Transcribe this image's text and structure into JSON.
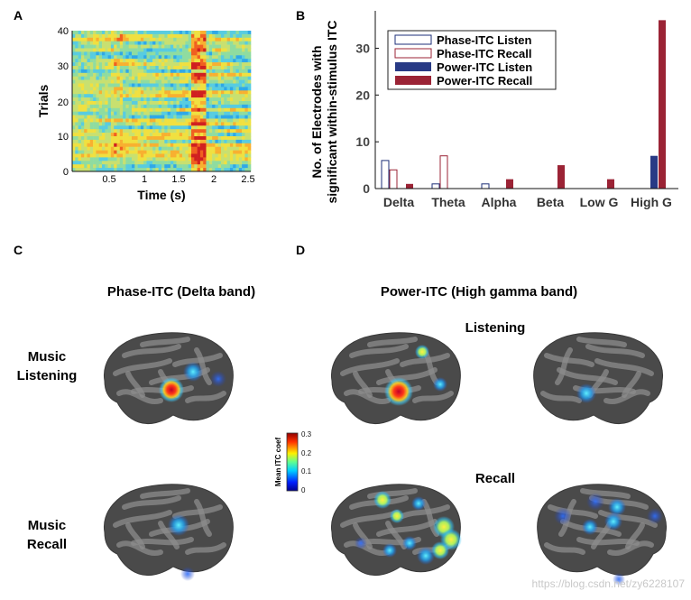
{
  "panels": {
    "a": "A",
    "b": "B",
    "c": "C",
    "d": "D"
  },
  "panel_a": {
    "ylabel": "Trials",
    "xlabel": "Time (s)",
    "y_ticks": [
      "0",
      "10",
      "20",
      "30",
      "40"
    ],
    "x_ticks": [
      "0.5",
      "1",
      "1.5",
      "2",
      "2.5"
    ]
  },
  "chart_data": {
    "type": "bar",
    "title": "",
    "xlabel": "",
    "ylabel": "No. of Electrodes with significant within-stimulus ITC",
    "ylabel_line1": "No. of Electrodes with",
    "ylabel_line2": "significant within-stimulus ITC",
    "categories": [
      "Delta",
      "Theta",
      "Alpha",
      "Beta",
      "Low G",
      "High G"
    ],
    "ylim": [
      0,
      38
    ],
    "y_ticks": [
      "0",
      "10",
      "20",
      "30"
    ],
    "legend_position": "top",
    "series": [
      {
        "name": "Phase-ITC Listen",
        "values": [
          6,
          1,
          1,
          0,
          0,
          0
        ],
        "style": "outline",
        "color": "#1c2f78"
      },
      {
        "name": "Phase-ITC Recall",
        "values": [
          4,
          7,
          0,
          0,
          0,
          0
        ],
        "style": "outline",
        "color": "#9b2335"
      },
      {
        "name": "Power-ITC Listen",
        "values": [
          0,
          0,
          0,
          0,
          0,
          7
        ],
        "style": "filled",
        "color": "#283a85"
      },
      {
        "name": "Power-ITC Recall",
        "values": [
          1,
          0,
          2,
          5,
          2,
          36
        ],
        "style": "filled",
        "color": "#9b2335"
      }
    ]
  },
  "panel_c": {
    "title": "Phase-ITC (Delta band)",
    "row1_line1": "Music",
    "row1_line2": "Listening",
    "row2_line1": "Music",
    "row2_line2": "Recall"
  },
  "panel_d": {
    "title": "Power-ITC (High gamma band)",
    "listening": "Listening",
    "recall": "Recall"
  },
  "colorbar": {
    "label": "Mean ITC coef",
    "ticks": [
      "0.3",
      "0.2",
      "0.1",
      "0"
    ]
  },
  "watermark": "https://blog.csdn.net/zy6228107",
  "colors": {
    "brain_dark": "#4a4a4a",
    "brain_light": "#8c8c8c",
    "hot": "#d0202a",
    "warm": "#f2c230",
    "cool": "#3cb8e0"
  }
}
